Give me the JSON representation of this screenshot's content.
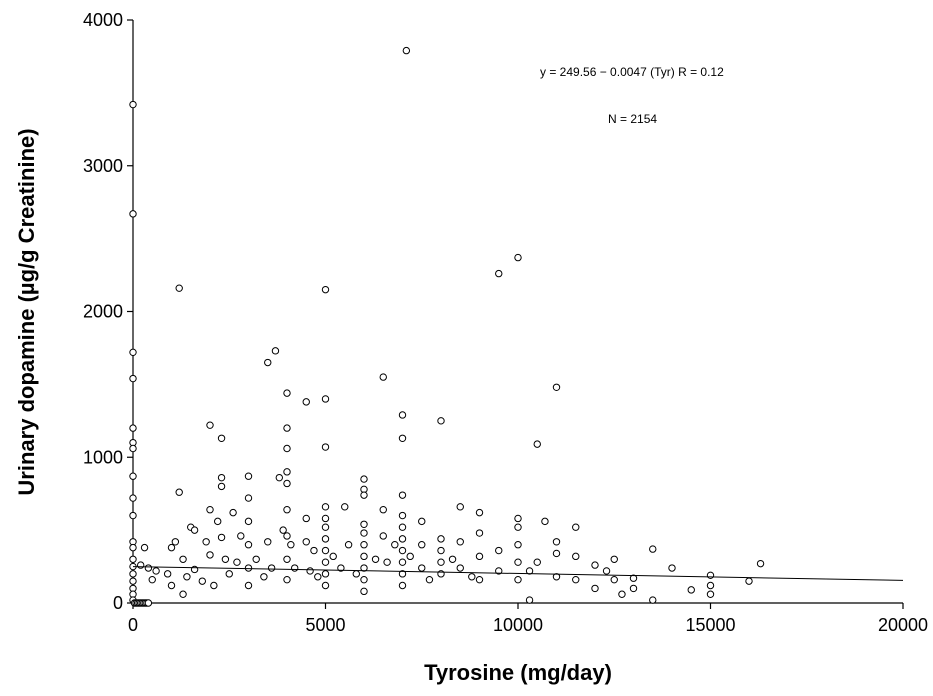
{
  "chart_data": {
    "type": "scatter",
    "title": "",
    "xlabel": "Tyrosine (mg/day)",
    "ylabel": "Urinary dopamine (µg/g Creatinine)",
    "xlim": [
      0,
      20000
    ],
    "ylim": [
      0,
      4000
    ],
    "x_ticks": [
      "0",
      "5000",
      "10000",
      "15000",
      "20000"
    ],
    "y_ticks": [
      "0",
      "1000",
      "2000",
      "3000",
      "4000"
    ],
    "annotations": {
      "equation": "y = 249.56 − 0.0047 (Tyr)   R = 0.12",
      "n": "N = 2154"
    },
    "regression": {
      "intercept": 249.56,
      "slope": -0.0047,
      "r": 0.12,
      "x_range": [
        0,
        20000
      ]
    },
    "marker": "open-circle",
    "grid": false,
    "points": [
      [
        0,
        3420
      ],
      [
        0,
        2670
      ],
      [
        0,
        1720
      ],
      [
        0,
        1540
      ],
      [
        0,
        1200
      ],
      [
        0,
        1100
      ],
      [
        0,
        1060
      ],
      [
        0,
        870
      ],
      [
        0,
        720
      ],
      [
        0,
        600
      ],
      [
        0,
        420
      ],
      [
        0,
        380
      ],
      [
        0,
        300
      ],
      [
        0,
        250
      ],
      [
        0,
        200
      ],
      [
        0,
        150
      ],
      [
        0,
        100
      ],
      [
        0,
        60
      ],
      [
        0,
        20
      ],
      [
        40,
        0
      ],
      [
        80,
        0
      ],
      [
        120,
        0
      ],
      [
        160,
        0
      ],
      [
        200,
        0
      ],
      [
        240,
        0
      ],
      [
        280,
        0
      ],
      [
        320,
        0
      ],
      [
        360,
        0
      ],
      [
        400,
        0
      ],
      [
        200,
        260
      ],
      [
        300,
        380
      ],
      [
        400,
        240
      ],
      [
        500,
        160
      ],
      [
        600,
        220
      ],
      [
        900,
        200
      ],
      [
        1000,
        380
      ],
      [
        1000,
        120
      ],
      [
        1100,
        420
      ],
      [
        1200,
        2160
      ],
      [
        1200,
        760
      ],
      [
        1300,
        300
      ],
      [
        1300,
        60
      ],
      [
        1400,
        180
      ],
      [
        1500,
        520
      ],
      [
        1600,
        500
      ],
      [
        1600,
        230
      ],
      [
        1800,
        150
      ],
      [
        1900,
        420
      ],
      [
        2000,
        1220
      ],
      [
        2000,
        640
      ],
      [
        2000,
        330
      ],
      [
        2100,
        120
      ],
      [
        2200,
        560
      ],
      [
        2300,
        1130
      ],
      [
        2300,
        860
      ],
      [
        2300,
        800
      ],
      [
        2300,
        450
      ],
      [
        2400,
        300
      ],
      [
        2500,
        200
      ],
      [
        2600,
        620
      ],
      [
        2700,
        280
      ],
      [
        2800,
        460
      ],
      [
        3000,
        870
      ],
      [
        3000,
        720
      ],
      [
        3000,
        560
      ],
      [
        3000,
        400
      ],
      [
        3000,
        240
      ],
      [
        3000,
        120
      ],
      [
        3200,
        300
      ],
      [
        3400,
        180
      ],
      [
        3500,
        1650
      ],
      [
        3500,
        420
      ],
      [
        3600,
        240
      ],
      [
        3700,
        1730
      ],
      [
        3800,
        860
      ],
      [
        3900,
        500
      ],
      [
        4000,
        1440
      ],
      [
        4000,
        1200
      ],
      [
        4000,
        1060
      ],
      [
        4000,
        900
      ],
      [
        4000,
        820
      ],
      [
        4000,
        640
      ],
      [
        4000,
        460
      ],
      [
        4000,
        300
      ],
      [
        4000,
        160
      ],
      [
        4100,
        400
      ],
      [
        4200,
        240
      ],
      [
        4500,
        1380
      ],
      [
        4500,
        580
      ],
      [
        4500,
        420
      ],
      [
        4600,
        220
      ],
      [
        4700,
        360
      ],
      [
        4800,
        180
      ],
      [
        5000,
        2150
      ],
      [
        5000,
        1400
      ],
      [
        5000,
        1070
      ],
      [
        5000,
        660
      ],
      [
        5000,
        580
      ],
      [
        5000,
        520
      ],
      [
        5000,
        440
      ],
      [
        5000,
        360
      ],
      [
        5000,
        280
      ],
      [
        5000,
        200
      ],
      [
        5000,
        120
      ],
      [
        5200,
        320
      ],
      [
        5400,
        240
      ],
      [
        5500,
        660
      ],
      [
        5600,
        400
      ],
      [
        5800,
        200
      ],
      [
        6000,
        850
      ],
      [
        6000,
        780
      ],
      [
        6000,
        740
      ],
      [
        6000,
        540
      ],
      [
        6000,
        480
      ],
      [
        6000,
        400
      ],
      [
        6000,
        320
      ],
      [
        6000,
        240
      ],
      [
        6000,
        160
      ],
      [
        6000,
        80
      ],
      [
        6300,
        300
      ],
      [
        6500,
        1550
      ],
      [
        6500,
        640
      ],
      [
        6500,
        460
      ],
      [
        6600,
        280
      ],
      [
        6800,
        400
      ],
      [
        7000,
        1290
      ],
      [
        7000,
        1130
      ],
      [
        7000,
        740
      ],
      [
        7000,
        600
      ],
      [
        7000,
        520
      ],
      [
        7000,
        440
      ],
      [
        7000,
        360
      ],
      [
        7000,
        280
      ],
      [
        7000,
        200
      ],
      [
        7000,
        120
      ],
      [
        7100,
        3790
      ],
      [
        7200,
        320
      ],
      [
        7500,
        560
      ],
      [
        7500,
        400
      ],
      [
        7500,
        240
      ],
      [
        7700,
        160
      ],
      [
        8000,
        1250
      ],
      [
        8000,
        440
      ],
      [
        8000,
        360
      ],
      [
        8000,
        280
      ],
      [
        8000,
        200
      ],
      [
        8300,
        300
      ],
      [
        8500,
        660
      ],
      [
        8500,
        420
      ],
      [
        8500,
        240
      ],
      [
        8800,
        180
      ],
      [
        9000,
        620
      ],
      [
        9000,
        480
      ],
      [
        9000,
        320
      ],
      [
        9000,
        160
      ],
      [
        9500,
        2260
      ],
      [
        9500,
        360
      ],
      [
        9500,
        220
      ],
      [
        10000,
        2370
      ],
      [
        10000,
        580
      ],
      [
        10000,
        520
      ],
      [
        10000,
        400
      ],
      [
        10000,
        280
      ],
      [
        10000,
        160
      ],
      [
        10300,
        20
      ],
      [
        10300,
        220
      ],
      [
        10500,
        1090
      ],
      [
        10500,
        280
      ],
      [
        10700,
        560
      ],
      [
        11000,
        1480
      ],
      [
        11000,
        420
      ],
      [
        11000,
        340
      ],
      [
        11000,
        180
      ],
      [
        11500,
        520
      ],
      [
        11500,
        320
      ],
      [
        11500,
        160
      ],
      [
        12000,
        260
      ],
      [
        12000,
        100
      ],
      [
        12300,
        220
      ],
      [
        12500,
        300
      ],
      [
        12500,
        160
      ],
      [
        12700,
        60
      ],
      [
        13000,
        170
      ],
      [
        13000,
        100
      ],
      [
        13500,
        370
      ],
      [
        13500,
        20
      ],
      [
        14000,
        240
      ],
      [
        14500,
        90
      ],
      [
        15000,
        190
      ],
      [
        15000,
        120
      ],
      [
        15000,
        60
      ],
      [
        16000,
        150
      ],
      [
        16300,
        270
      ]
    ]
  }
}
